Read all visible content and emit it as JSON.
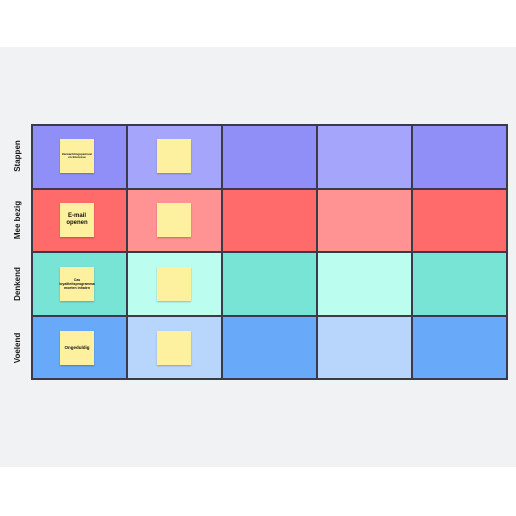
{
  "rows": [
    {
      "label": "Stappen",
      "note": "Verwachtingspatroon en Interesse"
    },
    {
      "label": "Mee bezig",
      "note": "E-mail openen"
    },
    {
      "label": "Denkend",
      "note": "Cas loyaliteitsprogramma moeten inhalen"
    },
    {
      "label": "Voelend",
      "note": "Ongeduldig"
    }
  ]
}
